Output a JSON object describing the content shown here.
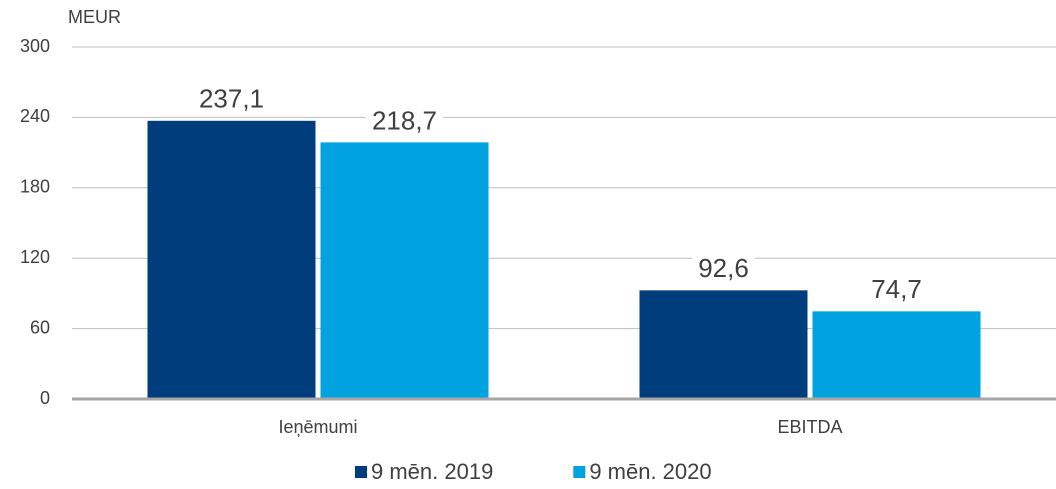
{
  "chart_data": {
    "type": "bar",
    "y_label": "MEUR",
    "categories": [
      "Ieņēmumi",
      "EBITDA"
    ],
    "series": [
      {
        "name": "9 mēn. 2019",
        "color": "#003d7c",
        "values": [
          237.1,
          92.6
        ],
        "value_labels": [
          "237,1",
          "92,6"
        ]
      },
      {
        "name": "9 mēn. 2020",
        "color": "#00a3e0",
        "values": [
          218.7,
          74.7
        ],
        "value_labels": [
          "218,7",
          "74,7"
        ]
      }
    ],
    "ylim": [
      0,
      300
    ],
    "yticks": [
      0,
      60,
      120,
      180,
      240,
      300
    ],
    "grid": true,
    "legend": "bottom"
  }
}
